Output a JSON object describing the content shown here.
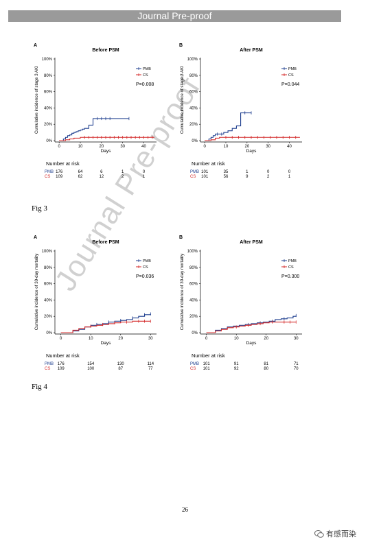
{
  "header": {
    "banner_text": "Journal Pre-proof"
  },
  "watermark_text": "Journal Pre-proof",
  "figures": [
    {
      "label": "Fig 3"
    },
    {
      "label": "Fig 4"
    }
  ],
  "page_number": "26",
  "footer": {
    "wechat_text": "有感而染",
    "icon": "wechat-icon"
  },
  "colors": {
    "PMB": "#1f3f8f",
    "CS": "#d42a2a",
    "banner": "#9a9a9a"
  },
  "chart_data": [
    {
      "type": "line",
      "panel": "A",
      "title": "Before PSM",
      "xlabel": "Days",
      "ylabel": "Cumulative incidence of stage 3 AKI",
      "xlim": [
        -2,
        46
      ],
      "ylim": [
        0,
        100
      ],
      "yticks": [
        "0%",
        "20%",
        "40%",
        "60%",
        "80%",
        "100%"
      ],
      "xticks": [
        0,
        10,
        20,
        30,
        40
      ],
      "pvalue": "P=0.008",
      "grid": false,
      "legend": "top-right",
      "series": [
        {
          "name": "PMB",
          "x": [
            0,
            2,
            3,
            4,
            5,
            6,
            7,
            8,
            9,
            10,
            11,
            12,
            14,
            16,
            18,
            22,
            33
          ],
          "y": [
            0,
            2,
            4,
            6,
            7,
            9,
            10,
            11,
            12,
            13,
            14,
            15,
            19,
            27,
            27,
            27,
            27
          ],
          "censor": [
            18,
            20,
            22,
            24,
            33
          ]
        },
        {
          "name": "CS",
          "x": [
            0,
            3,
            5,
            7,
            10,
            45
          ],
          "y": [
            0,
            1,
            2,
            3,
            4,
            4
          ],
          "censor": [
            12,
            14,
            16,
            18,
            20,
            22,
            24,
            26,
            28,
            30,
            32,
            34,
            36,
            38,
            40,
            42,
            44
          ]
        }
      ],
      "risk_table": {
        "title": "Number at risk",
        "rows": [
          {
            "name": "PMB",
            "values": [
              "176",
              "64",
              "6",
              "1",
              "0"
            ]
          },
          {
            "name": "CS",
            "values": [
              "109",
              "62",
              "12",
              "2",
              "1"
            ]
          }
        ]
      }
    },
    {
      "type": "line",
      "panel": "B",
      "title": "After PSM",
      "xlabel": "Days",
      "ylabel": "Cumulative incidence of stage 3 AKI",
      "xlim": [
        -2,
        46
      ],
      "ylim": [
        0,
        100
      ],
      "yticks": [
        "0%",
        "20%",
        "40%",
        "60%",
        "80%",
        "100%"
      ],
      "xticks": [
        0,
        10,
        20,
        30,
        40
      ],
      "pvalue": "P=0.044",
      "grid": false,
      "legend": "top-right",
      "series": [
        {
          "name": "PMB",
          "x": [
            0,
            2,
            3,
            4,
            5,
            7,
            9,
            11,
            13,
            15,
            17,
            22
          ],
          "y": [
            0,
            2,
            4,
            6,
            8,
            8,
            10,
            12,
            15,
            18,
            34,
            34
          ],
          "censor": [
            6,
            8,
            19,
            22
          ]
        },
        {
          "name": "CS",
          "x": [
            0,
            3,
            5,
            7,
            45
          ],
          "y": [
            0,
            1,
            3,
            4,
            4
          ],
          "censor": [
            10,
            13,
            16,
            19,
            22,
            25,
            28,
            31,
            34,
            37,
            40,
            43
          ]
        }
      ],
      "risk_table": {
        "title": "Number at risk",
        "rows": [
          {
            "name": "PMB",
            "values": [
              "101",
              "35",
              "1",
              "0",
              "0"
            ]
          },
          {
            "name": "CS",
            "values": [
              "101",
              "56",
              "9",
              "2",
              "1"
            ]
          }
        ]
      }
    },
    {
      "type": "line",
      "panel": "A",
      "title": "Before PSM",
      "xlabel": "Days",
      "ylabel": "Cumulative incidence of 30-day mortality",
      "xlim": [
        -2,
        32
      ],
      "ylim": [
        0,
        100
      ],
      "yticks": [
        "0%",
        "20%",
        "40%",
        "60%",
        "80%",
        "100%"
      ],
      "xticks": [
        0,
        10,
        20,
        30
      ],
      "pvalue": "P=0.036",
      "grid": false,
      "legend": "top-right",
      "series": [
        {
          "name": "PMB",
          "x": [
            0,
            4,
            6,
            8,
            10,
            12,
            14,
            16,
            18,
            20,
            22,
            24,
            26,
            28,
            30
          ],
          "y": [
            0,
            2,
            4,
            7,
            9,
            10,
            11,
            13,
            14,
            15,
            16,
            18,
            20,
            22,
            23
          ],
          "censor": [
            12,
            16,
            20,
            24,
            28,
            30
          ]
        },
        {
          "name": "CS",
          "x": [
            0,
            4,
            6,
            8,
            10,
            12,
            14,
            16,
            18,
            20,
            22,
            24,
            30
          ],
          "y": [
            0,
            3,
            5,
            7,
            8,
            9,
            10,
            11,
            12,
            13,
            13,
            14,
            14
          ],
          "censor": [
            10,
            14,
            18,
            22,
            26,
            28,
            30
          ]
        }
      ],
      "risk_table": {
        "title": "Number at risk",
        "rows": [
          {
            "name": "PMB",
            "values": [
              "176",
              "154",
              "130",
              "114"
            ]
          },
          {
            "name": "CS",
            "values": [
              "109",
              "100",
              "87",
              "77"
            ]
          }
        ]
      }
    },
    {
      "type": "line",
      "panel": "B",
      "title": "After PSM",
      "xlabel": "Days",
      "ylabel": "Cumulative incidence of 30-day mortality",
      "xlim": [
        -2,
        32
      ],
      "ylim": [
        0,
        100
      ],
      "yticks": [
        "0%",
        "20%",
        "40%",
        "60%",
        "80%",
        "100%"
      ],
      "xticks": [
        0,
        10,
        20,
        30
      ],
      "pvalue": "P=0.300",
      "grid": false,
      "legend": "top-right",
      "series": [
        {
          "name": "PMB",
          "x": [
            0,
            3,
            5,
            7,
            9,
            11,
            13,
            15,
            17,
            19,
            21,
            23,
            25,
            27,
            29,
            30
          ],
          "y": [
            0,
            3,
            5,
            7,
            8,
            9,
            10,
            11,
            12,
            13,
            14,
            16,
            17,
            18,
            20,
            21
          ],
          "censor": [
            14,
            18,
            22,
            26,
            30
          ]
        },
        {
          "name": "CS",
          "x": [
            0,
            3,
            5,
            7,
            9,
            11,
            13,
            15,
            17,
            19,
            21,
            30
          ],
          "y": [
            0,
            2,
            4,
            6,
            7,
            8,
            9,
            10,
            11,
            12,
            13,
            13
          ],
          "censor": [
            10,
            14,
            18,
            22,
            26,
            28,
            30
          ]
        }
      ],
      "risk_table": {
        "title": "Number at risk",
        "rows": [
          {
            "name": "PMB",
            "values": [
              "101",
              "91",
              "81",
              "71"
            ]
          },
          {
            "name": "CS",
            "values": [
              "101",
              "92",
              "80",
              "70"
            ]
          }
        ]
      }
    }
  ]
}
